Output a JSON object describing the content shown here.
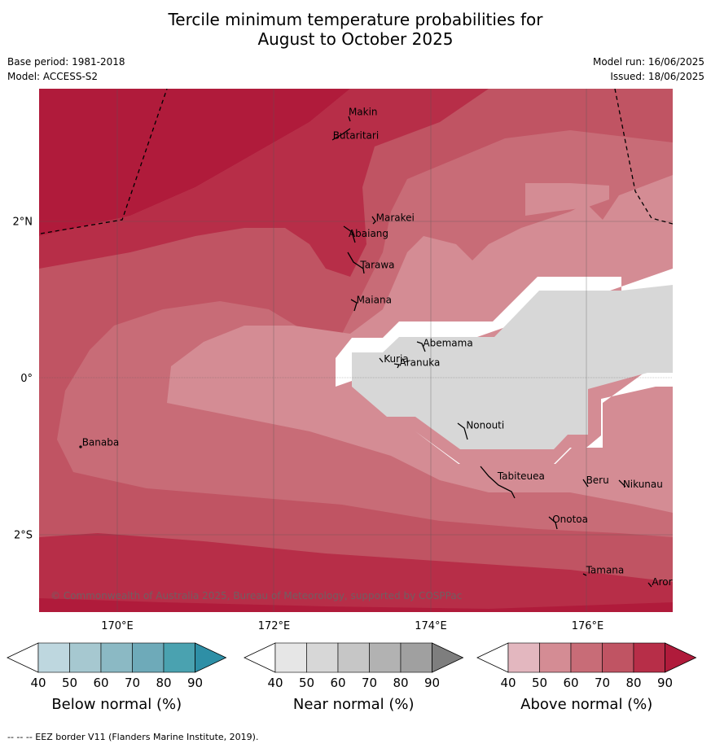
{
  "title_line1": "Tercile minimum temperature probabilities for",
  "title_line2": "August to October 2025",
  "meta_left": [
    "Base period: 1981-2018",
    "Model: ACCESS-S2"
  ],
  "meta_right": [
    "Model run: 16/06/2025",
    "Issued: 18/06/2025"
  ],
  "lat_labels": [
    {
      "text": "2°N",
      "lat": 2
    },
    {
      "text": "0°",
      "lat": 0
    },
    {
      "text": "2°S",
      "lat": -2
    }
  ],
  "lon_labels": [
    {
      "text": "170°E",
      "lon": 170
    },
    {
      "text": "172°E",
      "lon": 172
    },
    {
      "text": "174°E",
      "lon": 174
    },
    {
      "text": "176°E",
      "lon": 176
    }
  ],
  "islands": [
    {
      "name": "Makin",
      "lon": 172.95,
      "lat": 3.35
    },
    {
      "name": "Butaritari",
      "lon": 172.75,
      "lat": 3.05
    },
    {
      "name": "Marakei",
      "lon": 173.3,
      "lat": 2.0
    },
    {
      "name": "Abaiang",
      "lon": 172.95,
      "lat": 1.8
    },
    {
      "name": "Tarawa",
      "lon": 173.1,
      "lat": 1.4
    },
    {
      "name": "Maiana",
      "lon": 173.05,
      "lat": 0.95
    },
    {
      "name": "Abemama",
      "lon": 173.9,
      "lat": 0.4
    },
    {
      "name": "Kuria",
      "lon": 173.4,
      "lat": 0.2
    },
    {
      "name": "Aranuka",
      "lon": 173.6,
      "lat": 0.15
    },
    {
      "name": "Nonouti",
      "lon": 174.45,
      "lat": -0.65
    },
    {
      "name": "Banaba",
      "lon": 169.55,
      "lat": -0.87
    },
    {
      "name": "Tabiteuea",
      "lon": 174.85,
      "lat": -1.3
    },
    {
      "name": "Beru",
      "lon": 175.98,
      "lat": -1.35
    },
    {
      "name": "Nikunau",
      "lon": 176.45,
      "lat": -1.4
    },
    {
      "name": "Onotoa",
      "lon": 175.55,
      "lat": -1.85
    },
    {
      "name": "Tamana",
      "lon": 175.98,
      "lat": -2.5
    },
    {
      "name": "Arorae",
      "lon": 176.82,
      "lat": -2.65
    }
  ],
  "copyright": "© Commonwealth of Australia 2025, Bureau of Meteorology, supported by COSPPac",
  "colorbars": [
    {
      "title": "Below normal (%)",
      "ticks": [
        "40",
        "50",
        "60",
        "70",
        "80",
        "90"
      ],
      "colors": [
        "#ffffff",
        "#bed7df",
        "#a6c8d0",
        "#8bb9c4",
        "#6eaab9",
        "#4aa2b0",
        "#2e8fa6"
      ]
    },
    {
      "title": "Near normal (%)",
      "ticks": [
        "40",
        "50",
        "60",
        "70",
        "80",
        "90"
      ],
      "colors": [
        "#ffffff",
        "#e6e6e6",
        "#d7d7d7",
        "#c6c6c6",
        "#b2b2b2",
        "#a0a0a0",
        "#7e7e7e"
      ]
    },
    {
      "title": "Above normal (%)",
      "ticks": [
        "40",
        "50",
        "60",
        "70",
        "80",
        "90"
      ],
      "colors": [
        "#ffffff",
        "#e3b7bf",
        "#d48c94",
        "#c86c77",
        "#c05463",
        "#b72e48",
        "#b01b3b"
      ]
    }
  ],
  "footer": "--  --  -- EEZ border V11 (Flanders Marine Institute, 2019)."
}
